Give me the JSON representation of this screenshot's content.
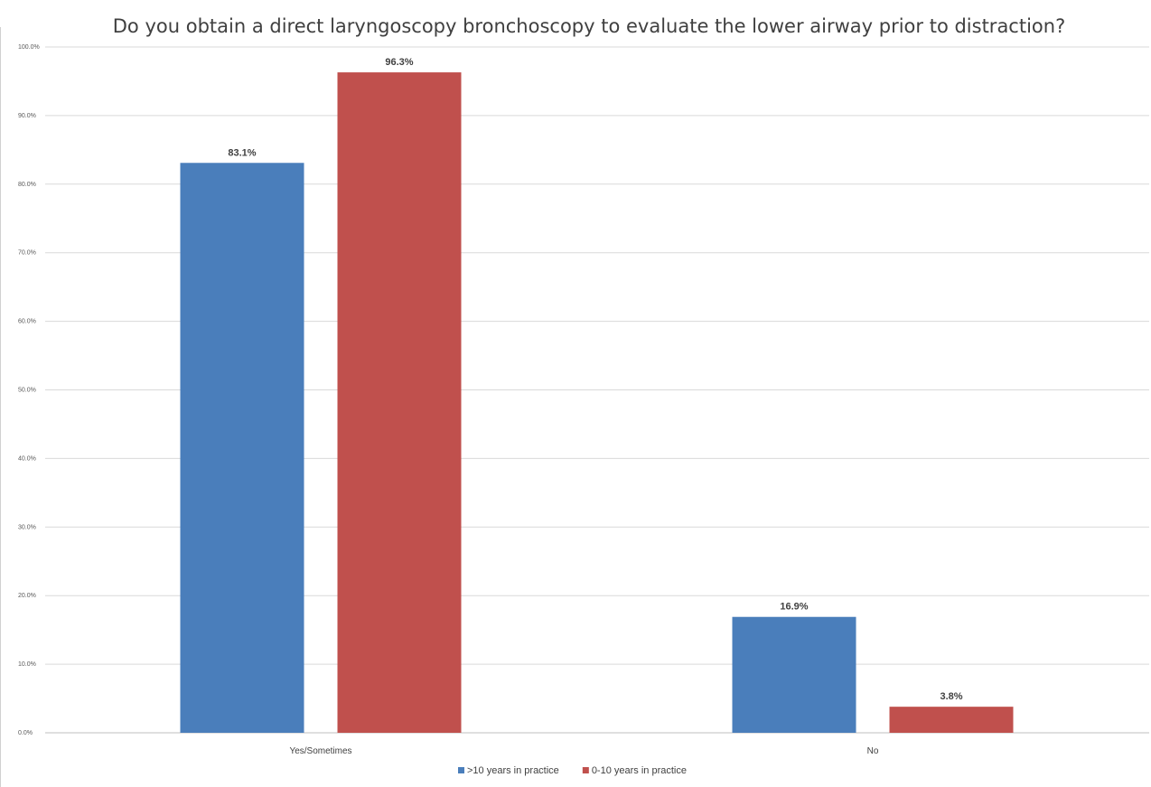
{
  "chart_data": {
    "type": "bar",
    "title": "Do you obtain a direct laryngoscopy bronchoscopy to evaluate the lower airway prior to distraction?",
    "categories": [
      "Yes/Sometimes",
      "No"
    ],
    "series": [
      {
        "name": ">10 years in practice",
        "values": [
          83.1,
          16.9
        ],
        "labels": [
          "83.1%",
          "16.9%"
        ],
        "color": "#4a7ebb"
      },
      {
        "name": "0-10 years in practice",
        "values": [
          96.3,
          3.8
        ],
        "labels": [
          "96.3%",
          "3.8%"
        ],
        "color": "#c0504d"
      }
    ],
    "ylim": [
      0,
      100
    ],
    "yticks": [
      "0.0%",
      "10.0%",
      "20.0%",
      "30.0%",
      "40.0%",
      "50.0%",
      "60.0%",
      "70.0%",
      "80.0%",
      "90.0%",
      "100.0%"
    ],
    "grid": true,
    "legend_position": "bottom",
    "xlabel": "",
    "ylabel": ""
  }
}
